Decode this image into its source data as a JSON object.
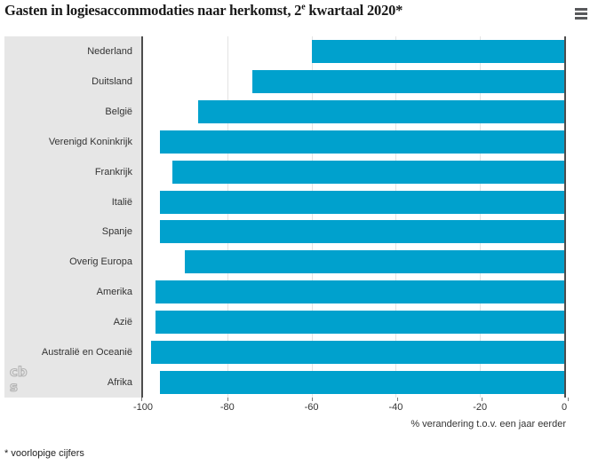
{
  "header": {
    "title_prefix": "Gasten in logiesaccommodaties naar herkomst, 2",
    "title_sup": "e",
    "title_suffix": " kwartaal 2020*",
    "menu_icon": "hamburger-menu-icon"
  },
  "chart_data": {
    "type": "bar",
    "orientation": "horizontal",
    "title": "Gasten in logiesaccommodaties naar herkomst, 2e kwartaal 2020*",
    "categories": [
      "Nederland",
      "Duitsland",
      "België",
      "Verenigd Koninkrijk",
      "Frankrijk",
      "Italië",
      "Spanje",
      "Overig Europa",
      "Amerika",
      "Azië",
      "Australië en Oceanië",
      "Afrika"
    ],
    "values": [
      -60,
      -74,
      -87,
      -96,
      -93,
      -96,
      -96,
      -90,
      -97,
      -97,
      -98,
      -96
    ],
    "xlabel": "% verandering t.o.v. een jaar eerder",
    "ylabel": "",
    "xlim": [
      -100,
      0
    ],
    "xticks": [
      -100,
      -80,
      -60,
      -40,
      -20,
      0
    ],
    "grid": true,
    "legend": "none",
    "unit": "%"
  },
  "footnote": "* voorlopige cijfers",
  "logo": {
    "top": "cb",
    "bottom": "s",
    "name": "cbs-logo"
  },
  "colors": {
    "bar": "#00a1cd",
    "panel_bg": "#e6e6e6",
    "axis_line": "#4d4d4d",
    "gridline": "#e3e3e3",
    "title_text": "#1a1a1a",
    "label_text": "#333333",
    "menu_icon": "#58595b",
    "logo_stroke": "#b3b3b3"
  }
}
